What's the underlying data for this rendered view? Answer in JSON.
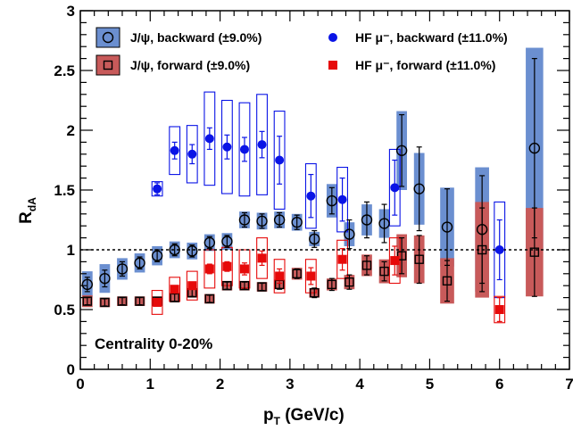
{
  "chart_data": {
    "type": "scatter",
    "title": "",
    "xlabel": "p",
    "xlabel_sub": "T",
    "xlabel_unit": " (GeV/c)",
    "ylabel": "R",
    "ylabel_sub": "dA",
    "xlim": [
      0,
      7
    ],
    "ylim": [
      0,
      3
    ],
    "x_ticks": [
      "0",
      "1",
      "2",
      "3",
      "4",
      "5",
      "6",
      "7"
    ],
    "y_ticks": [
      "0",
      "0.5",
      "1",
      "1.5",
      "2",
      "2.5",
      "3"
    ],
    "reference_line": 1,
    "annotation": "Centrality 0-20%",
    "legend_position": "top",
    "grid": false,
    "series": [
      {
        "name": "J/ψ, backward (±9.0%)",
        "marker": "open-circle",
        "syst_style": "filled-box",
        "color": "#6b8fd0",
        "points": [
          {
            "x": 0.1,
            "y": 0.71,
            "err": 0.06,
            "syst": 0.11,
            "w": 0.15
          },
          {
            "x": 0.35,
            "y": 0.76,
            "err": 0.07,
            "syst": 0.12,
            "w": 0.15
          },
          {
            "x": 0.6,
            "y": 0.84,
            "err": 0.06,
            "syst": 0.09,
            "w": 0.15
          },
          {
            "x": 0.85,
            "y": 0.89,
            "err": 0.05,
            "syst": 0.08,
            "w": 0.15
          },
          {
            "x": 1.1,
            "y": 0.95,
            "err": 0.05,
            "syst": 0.08,
            "w": 0.15
          },
          {
            "x": 1.35,
            "y": 1.0,
            "err": 0.05,
            "syst": 0.07,
            "w": 0.15
          },
          {
            "x": 1.6,
            "y": 0.99,
            "err": 0.05,
            "syst": 0.07,
            "w": 0.15
          },
          {
            "x": 1.85,
            "y": 1.06,
            "err": 0.05,
            "syst": 0.07,
            "w": 0.15
          },
          {
            "x": 2.1,
            "y": 1.07,
            "err": 0.05,
            "syst": 0.07,
            "w": 0.15
          },
          {
            "x": 2.35,
            "y": 1.25,
            "err": 0.06,
            "syst": 0.07,
            "w": 0.15
          },
          {
            "x": 2.6,
            "y": 1.24,
            "err": 0.06,
            "syst": 0.07,
            "w": 0.15
          },
          {
            "x": 2.85,
            "y": 1.25,
            "err": 0.06,
            "syst": 0.07,
            "w": 0.15
          },
          {
            "x": 3.1,
            "y": 1.23,
            "err": 0.06,
            "syst": 0.07,
            "w": 0.15
          },
          {
            "x": 3.35,
            "y": 1.09,
            "err": 0.07,
            "syst": 0.06,
            "w": 0.15
          },
          {
            "x": 3.6,
            "y": 1.41,
            "err": 0.11,
            "syst": 0.14,
            "w": 0.15
          },
          {
            "x": 3.85,
            "y": 1.13,
            "err": 0.12,
            "syst": 0.1,
            "w": 0.15
          },
          {
            "x": 4.1,
            "y": 1.25,
            "err": 0.15,
            "syst": 0.13,
            "w": 0.15
          },
          {
            "x": 4.35,
            "y": 1.22,
            "err": 0.16,
            "syst": 0.12,
            "w": 0.15
          },
          {
            "x": 4.6,
            "y": 1.83,
            "err": 0.3,
            "syst": 0.33,
            "w": 0.15
          },
          {
            "x": 4.85,
            "y": 1.51,
            "err": 0.35,
            "syst": 0.3,
            "w": 0.15
          },
          {
            "x": 5.25,
            "y": 1.19,
            "err": 0.32,
            "syst": 0.33,
            "w": 0.2
          },
          {
            "x": 5.75,
            "y": 1.17,
            "err": 0.45,
            "syst": 0.52,
            "w": 0.2
          },
          {
            "x": 6.5,
            "y": 1.85,
            "err": 0.75,
            "syst": 0.84,
            "w": 0.25
          }
        ]
      },
      {
        "name": "J/ψ, forward (±9.0%)",
        "marker": "open-square",
        "syst_style": "filled-box",
        "color": "#c85a5a",
        "points": [
          {
            "x": 0.1,
            "y": 0.57,
            "err": 0.03,
            "syst": 0.05,
            "w": 0.15
          },
          {
            "x": 0.35,
            "y": 0.56,
            "err": 0.03,
            "syst": 0.04,
            "w": 0.15
          },
          {
            "x": 0.6,
            "y": 0.57,
            "err": 0.03,
            "syst": 0.04,
            "w": 0.15
          },
          {
            "x": 0.85,
            "y": 0.57,
            "err": 0.03,
            "syst": 0.04,
            "w": 0.15
          },
          {
            "x": 1.1,
            "y": 0.57,
            "err": 0.03,
            "syst": 0.04,
            "w": 0.15
          },
          {
            "x": 1.35,
            "y": 0.6,
            "err": 0.03,
            "syst": 0.04,
            "w": 0.15
          },
          {
            "x": 1.6,
            "y": 0.64,
            "err": 0.03,
            "syst": 0.04,
            "w": 0.15
          },
          {
            "x": 1.85,
            "y": 0.59,
            "err": 0.03,
            "syst": 0.04,
            "w": 0.15
          },
          {
            "x": 2.1,
            "y": 0.7,
            "err": 0.03,
            "syst": 0.04,
            "w": 0.15
          },
          {
            "x": 2.35,
            "y": 0.7,
            "err": 0.03,
            "syst": 0.04,
            "w": 0.15
          },
          {
            "x": 2.6,
            "y": 0.69,
            "err": 0.03,
            "syst": 0.04,
            "w": 0.15
          },
          {
            "x": 2.85,
            "y": 0.71,
            "err": 0.04,
            "syst": 0.04,
            "w": 0.15
          },
          {
            "x": 3.1,
            "y": 0.8,
            "err": 0.04,
            "syst": 0.05,
            "w": 0.15
          },
          {
            "x": 3.35,
            "y": 0.64,
            "err": 0.04,
            "syst": 0.04,
            "w": 0.15
          },
          {
            "x": 3.6,
            "y": 0.71,
            "err": 0.05,
            "syst": 0.05,
            "w": 0.15
          },
          {
            "x": 3.85,
            "y": 0.73,
            "err": 0.06,
            "syst": 0.06,
            "w": 0.15
          },
          {
            "x": 4.1,
            "y": 0.87,
            "err": 0.08,
            "syst": 0.09,
            "w": 0.15
          },
          {
            "x": 4.35,
            "y": 0.82,
            "err": 0.08,
            "syst": 0.1,
            "w": 0.15
          },
          {
            "x": 4.6,
            "y": 0.95,
            "err": 0.15,
            "syst": 0.18,
            "w": 0.15
          },
          {
            "x": 4.85,
            "y": 0.92,
            "err": 0.2,
            "syst": 0.2,
            "w": 0.15
          },
          {
            "x": 5.25,
            "y": 0.74,
            "err": 0.17,
            "syst": 0.19,
            "w": 0.2
          },
          {
            "x": 5.75,
            "y": 1.0,
            "err": 0.35,
            "syst": 0.4,
            "w": 0.2
          },
          {
            "x": 6.5,
            "y": 0.98,
            "err": 0.37,
            "syst": 0.37,
            "w": 0.25
          }
        ]
      },
      {
        "name": "HF μ⁻, backward (±11.0%)",
        "marker": "filled-circle",
        "syst_style": "open-box",
        "color": "#0a14e6",
        "points": [
          {
            "x": 1.1,
            "y": 1.51,
            "err": 0.05,
            "syst": 0.06,
            "w": 0.15
          },
          {
            "x": 1.35,
            "y": 1.83,
            "err": 0.07,
            "syst": 0.2,
            "w": 0.15
          },
          {
            "x": 1.6,
            "y": 1.8,
            "err": 0.08,
            "syst": 0.24,
            "w": 0.15
          },
          {
            "x": 1.85,
            "y": 1.93,
            "err": 0.09,
            "syst": 0.39,
            "w": 0.15
          },
          {
            "x": 2.1,
            "y": 1.86,
            "err": 0.1,
            "syst": 0.39,
            "w": 0.15
          },
          {
            "x": 2.35,
            "y": 1.84,
            "err": 0.1,
            "syst": 0.39,
            "w": 0.15
          },
          {
            "x": 2.6,
            "y": 1.88,
            "err": 0.11,
            "syst": 0.42,
            "w": 0.15
          },
          {
            "x": 2.85,
            "y": 1.75,
            "err": 0.2,
            "syst": 0.41,
            "w": 0.15
          },
          {
            "x": 3.3,
            "y": 1.45,
            "err": 0.18,
            "syst": 0.27,
            "w": 0.15
          },
          {
            "x": 3.75,
            "y": 1.42,
            "err": 0.18,
            "syst": 0.27,
            "w": 0.15
          },
          {
            "x": 4.5,
            "y": 1.52,
            "err": 0.23,
            "syst": 0.32,
            "w": 0.15
          },
          {
            "x": 6.0,
            "y": 1.0,
            "err": 0.25,
            "syst": 0.4,
            "w": 0.15
          }
        ]
      },
      {
        "name": "HF μ⁻, forward (±11.0%)",
        "marker": "filled-square",
        "syst_style": "open-box",
        "color": "#e60a0a",
        "points": [
          {
            "x": 1.1,
            "y": 0.56,
            "err": 0.03,
            "syst": 0.1,
            "w": 0.15
          },
          {
            "x": 1.35,
            "y": 0.67,
            "err": 0.03,
            "syst": 0.1,
            "w": 0.15
          },
          {
            "x": 1.6,
            "y": 0.7,
            "err": 0.03,
            "syst": 0.12,
            "w": 0.15
          },
          {
            "x": 1.85,
            "y": 0.84,
            "err": 0.04,
            "syst": 0.16,
            "w": 0.15
          },
          {
            "x": 2.1,
            "y": 0.86,
            "err": 0.04,
            "syst": 0.16,
            "w": 0.15
          },
          {
            "x": 2.35,
            "y": 0.84,
            "err": 0.05,
            "syst": 0.16,
            "w": 0.15
          },
          {
            "x": 2.6,
            "y": 0.93,
            "err": 0.06,
            "syst": 0.17,
            "w": 0.15
          },
          {
            "x": 2.85,
            "y": 0.78,
            "err": 0.06,
            "syst": 0.14,
            "w": 0.15
          },
          {
            "x": 3.3,
            "y": 0.78,
            "err": 0.07,
            "syst": 0.14,
            "w": 0.15
          },
          {
            "x": 3.75,
            "y": 0.92,
            "err": 0.09,
            "syst": 0.16,
            "w": 0.15
          },
          {
            "x": 4.5,
            "y": 0.91,
            "err": 0.12,
            "syst": 0.19,
            "w": 0.15
          },
          {
            "x": 6.0,
            "y": 0.5,
            "err": 0.1,
            "syst": 0.11,
            "w": 0.15
          }
        ]
      }
    ]
  }
}
